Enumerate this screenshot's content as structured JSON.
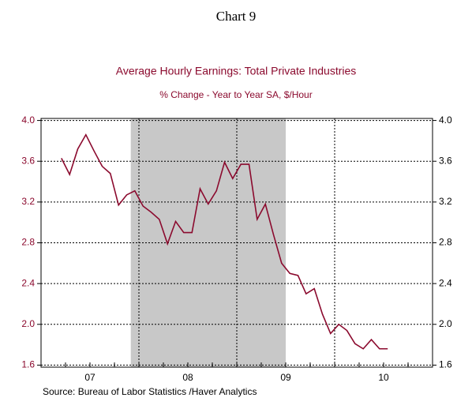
{
  "chart_data": {
    "type": "line",
    "header": "Chart 9",
    "title": "Average Hourly Earnings: Total Private Industries",
    "subtitle": "% Change - Year to Year   SA, $/Hour",
    "source": "Source:  Bureau of Labor Statistics /Haver Analytics",
    "x": [
      2007.208,
      2007.292,
      2007.375,
      2007.458,
      2007.542,
      2007.625,
      2007.708,
      2007.792,
      2007.875,
      2007.958,
      2008.042,
      2008.125,
      2008.208,
      2008.292,
      2008.375,
      2008.458,
      2008.542,
      2008.625,
      2008.708,
      2008.792,
      2008.875,
      2008.958,
      2009.042,
      2009.125,
      2009.208,
      2009.292,
      2009.375,
      2009.458,
      2009.542,
      2009.625,
      2009.708,
      2009.792,
      2009.875,
      2009.958,
      2010.042,
      2010.125,
      2010.208,
      2010.292,
      2010.375,
      2010.458,
      2010.542
    ],
    "series": [
      {
        "color": "#8b0a2e",
        "values": [
          3.63,
          3.47,
          3.72,
          3.86,
          3.7,
          3.55,
          3.48,
          3.17,
          3.27,
          3.31,
          3.16,
          3.1,
          3.03,
          2.79,
          3.01,
          2.9,
          2.9,
          3.33,
          3.18,
          3.31,
          3.59,
          3.43,
          3.57,
          3.57,
          3.03,
          3.18,
          2.88,
          2.6,
          2.5,
          2.48,
          2.3,
          2.35,
          2.1,
          1.91,
          2.0,
          1.94,
          1.81,
          1.76,
          1.85,
          1.76,
          1.76
        ]
      }
    ],
    "xlim": [
      2007,
      2011
    ],
    "xticks": [
      {
        "value": 2007.5,
        "label": "07"
      },
      {
        "value": 2008.5,
        "label": "08"
      },
      {
        "value": 2009.5,
        "label": "09"
      },
      {
        "value": 2010.5,
        "label": "10"
      }
    ],
    "xgrid": [
      2008,
      2009,
      2010
    ],
    "shaded_periods": [
      [
        2007.917,
        2009.5
      ]
    ],
    "ylim": [
      1.58,
      4.02
    ],
    "yticks": [
      {
        "value": 1.6,
        "label": "1.6"
      },
      {
        "value": 2.0,
        "label": "2.0"
      },
      {
        "value": 2.4,
        "label": "2.4"
      },
      {
        "value": 2.8,
        "label": "2.8"
      },
      {
        "value": 3.2,
        "label": "3.2"
      },
      {
        "value": 3.6,
        "label": "3.6"
      },
      {
        "value": 4.0,
        "label": "4.0"
      }
    ],
    "grid": true
  }
}
